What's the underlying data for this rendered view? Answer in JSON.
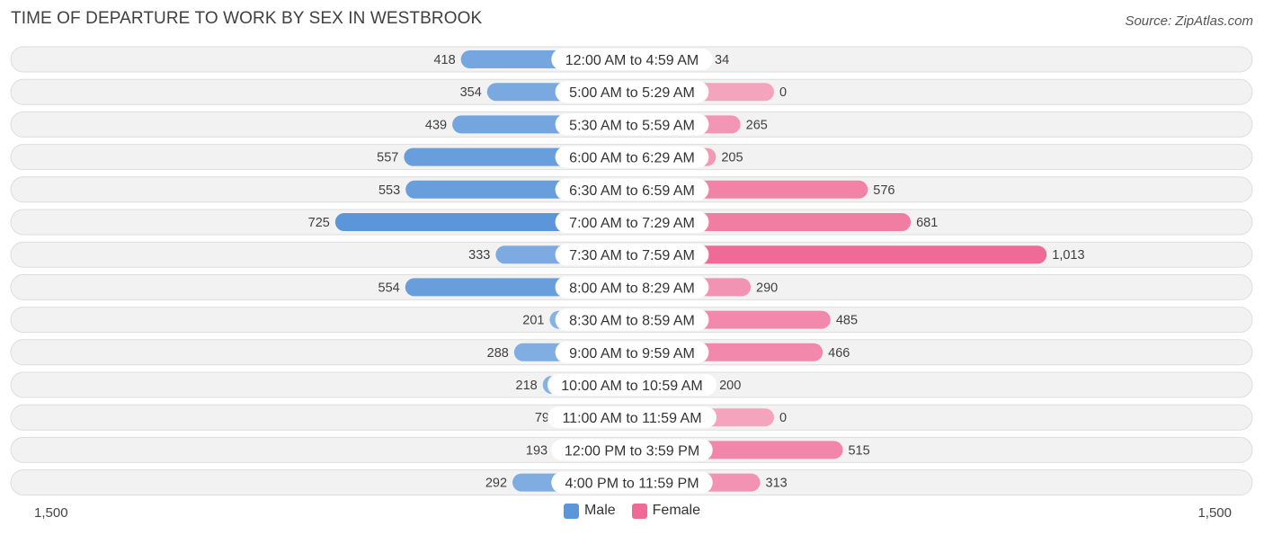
{
  "title": "TIME OF DEPARTURE TO WORK BY SEX IN WESTBROOK",
  "source": "Source: ZipAtlas.com",
  "colors": {
    "male": "#6fa3dc",
    "male_strong": "#5b95da",
    "female": "#f291b0",
    "female_strong": "#ef6a96",
    "row_bg": "#efefef"
  },
  "legend": {
    "male_label": "Male",
    "female_label": "Female"
  },
  "axis": {
    "left_label": "1,500",
    "right_label": "1,500"
  },
  "chart_data": {
    "type": "bar",
    "orientation": "horizontal-diverging",
    "xlim": [
      -1500,
      1500
    ],
    "categories": [
      "12:00 AM to 4:59 AM",
      "5:00 AM to 5:29 AM",
      "5:30 AM to 5:59 AM",
      "6:00 AM to 6:29 AM",
      "6:30 AM to 6:59 AM",
      "7:00 AM to 7:29 AM",
      "7:30 AM to 7:59 AM",
      "8:00 AM to 8:29 AM",
      "8:30 AM to 8:59 AM",
      "9:00 AM to 9:59 AM",
      "10:00 AM to 10:59 AM",
      "11:00 AM to 11:59 AM",
      "12:00 PM to 3:59 PM",
      "4:00 PM to 11:59 PM"
    ],
    "series": [
      {
        "name": "Male",
        "values": [
          418,
          354,
          439,
          557,
          553,
          725,
          333,
          554,
          201,
          288,
          218,
          79,
          193,
          292
        ],
        "labels": [
          "418",
          "354",
          "439",
          "557",
          "553",
          "725",
          "333",
          "554",
          "201",
          "288",
          "218",
          "79",
          "193",
          "292"
        ]
      },
      {
        "name": "Female",
        "values": [
          34,
          0,
          265,
          205,
          576,
          681,
          1013,
          290,
          485,
          466,
          200,
          0,
          515,
          313
        ],
        "labels": [
          "34",
          "0",
          "265",
          "205",
          "576",
          "681",
          "1,013",
          "290",
          "485",
          "466",
          "200",
          "0",
          "515",
          "313"
        ]
      }
    ]
  }
}
